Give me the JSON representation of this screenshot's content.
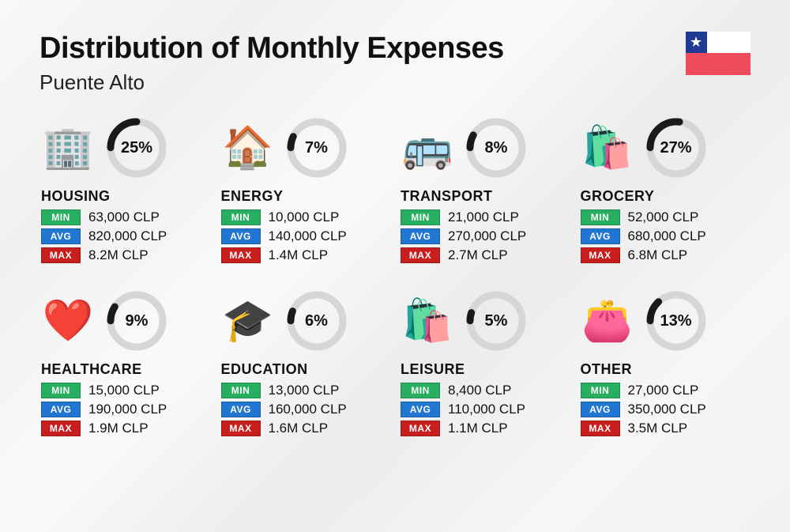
{
  "title": "Distribution of Monthly Expenses",
  "subtitle": "Puente Alto",
  "title_fontsize": 38,
  "subtitle_fontsize": 26,
  "background_color": "#f4f4f4",
  "currency_suffix": "CLP",
  "donut": {
    "radius": 33,
    "stroke_width": 9,
    "track_color": "#d6d6d6",
    "fill_color": "#1a1a1a",
    "pct_fontsize": 20,
    "pct_fontweight": 800
  },
  "badges": {
    "min": {
      "label": "MIN",
      "bg": "#27ae60"
    },
    "avg": {
      "label": "AVG",
      "bg": "#2176d2"
    },
    "max": {
      "label": "MAX",
      "bg": "#c81e1e"
    }
  },
  "typography": {
    "category_fontsize": 18,
    "category_fontweight": 800,
    "stat_fontsize": 17,
    "badge_fontsize": 12
  },
  "flag": {
    "blue": "#1f3a93",
    "white": "#ffffff",
    "red": "#ef4b5d",
    "star": "★"
  },
  "categories": [
    {
      "name": "HOUSING",
      "icon": "🏢",
      "pct": 25,
      "pct_label": "25%",
      "min": "63,000 CLP",
      "avg": "820,000 CLP",
      "max": "8.2M CLP"
    },
    {
      "name": "ENERGY",
      "icon": "🏠",
      "pct": 7,
      "pct_label": "7%",
      "min": "10,000 CLP",
      "avg": "140,000 CLP",
      "max": "1.4M CLP"
    },
    {
      "name": "TRANSPORT",
      "icon": "🚌",
      "pct": 8,
      "pct_label": "8%",
      "min": "21,000 CLP",
      "avg": "270,000 CLP",
      "max": "2.7M CLP"
    },
    {
      "name": "GROCERY",
      "icon": "🛍️",
      "pct": 27,
      "pct_label": "27%",
      "min": "52,000 CLP",
      "avg": "680,000 CLP",
      "max": "6.8M CLP"
    },
    {
      "name": "HEALTHCARE",
      "icon": "❤️",
      "pct": 9,
      "pct_label": "9%",
      "min": "15,000 CLP",
      "avg": "190,000 CLP",
      "max": "1.9M CLP"
    },
    {
      "name": "EDUCATION",
      "icon": "🎓",
      "pct": 6,
      "pct_label": "6%",
      "min": "13,000 CLP",
      "avg": "160,000 CLP",
      "max": "1.6M CLP"
    },
    {
      "name": "LEISURE",
      "icon": "🛍️",
      "pct": 5,
      "pct_label": "5%",
      "min": "8,400 CLP",
      "avg": "110,000 CLP",
      "max": "1.1M CLP"
    },
    {
      "name": "OTHER",
      "icon": "👛",
      "pct": 13,
      "pct_label": "13%",
      "min": "27,000 CLP",
      "avg": "350,000 CLP",
      "max": "3.5M CLP"
    }
  ]
}
